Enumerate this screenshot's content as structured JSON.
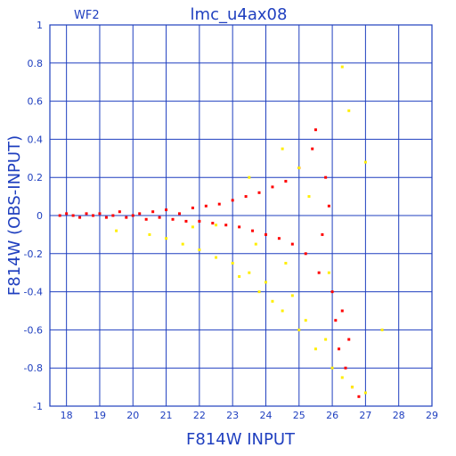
{
  "chart_data": {
    "type": "scatter",
    "title": "lmc_u4ax08",
    "subtitle": "WF2",
    "xlabel": "F814W  INPUT",
    "ylabel": "F814W  (OBS-INPUT)",
    "xlim": [
      17.5,
      29
    ],
    "ylim": [
      -1,
      1
    ],
    "x_ticks": [
      "18",
      "19",
      "20",
      "21",
      "22",
      "23",
      "24",
      "25",
      "26",
      "27",
      "28",
      "29"
    ],
    "y_ticks": [
      "1",
      "0.8",
      "0.6",
      "0.4",
      "0.2",
      "0",
      "-0.2",
      "-0.4",
      "-0.6",
      "-0.8",
      "-1"
    ],
    "grid": true,
    "colors": {
      "axes": "#1f3fbf",
      "grid": "#1f3fbf",
      "primary": "#ff0000",
      "secondary": "#ffee00"
    },
    "series": [
      {
        "color": "#ff0000",
        "points": [
          [
            17.8,
            0.0
          ],
          [
            18.0,
            0.01
          ],
          [
            18.2,
            0.0
          ],
          [
            18.4,
            -0.01
          ],
          [
            18.6,
            0.01
          ],
          [
            18.8,
            0.0
          ],
          [
            19.0,
            0.01
          ],
          [
            19.2,
            -0.01
          ],
          [
            19.4,
            0.0
          ],
          [
            19.6,
            0.02
          ],
          [
            19.8,
            -0.01
          ],
          [
            20.0,
            0.0
          ],
          [
            20.2,
            0.01
          ],
          [
            20.4,
            -0.02
          ],
          [
            20.6,
            0.02
          ],
          [
            20.8,
            -0.01
          ],
          [
            21.0,
            0.03
          ],
          [
            21.2,
            -0.02
          ],
          [
            21.4,
            0.01
          ],
          [
            21.6,
            -0.03
          ],
          [
            21.8,
            0.04
          ],
          [
            22.0,
            -0.03
          ],
          [
            22.2,
            0.05
          ],
          [
            22.4,
            -0.04
          ],
          [
            22.6,
            0.06
          ],
          [
            22.8,
            -0.05
          ],
          [
            23.0,
            0.08
          ],
          [
            23.2,
            -0.06
          ],
          [
            23.4,
            0.1
          ],
          [
            23.6,
            -0.08
          ],
          [
            23.8,
            0.12
          ],
          [
            24.0,
            -0.1
          ],
          [
            24.2,
            0.15
          ],
          [
            24.4,
            -0.12
          ],
          [
            24.6,
            0.18
          ],
          [
            24.8,
            -0.15
          ],
          [
            25.0,
            0.25
          ],
          [
            25.2,
            -0.2
          ],
          [
            25.4,
            0.35
          ],
          [
            25.5,
            0.45
          ],
          [
            25.6,
            -0.3
          ],
          [
            25.8,
            0.2
          ],
          [
            26.0,
            -0.4
          ],
          [
            26.1,
            -0.55
          ],
          [
            26.2,
            -0.7
          ],
          [
            26.3,
            -0.5
          ],
          [
            26.4,
            -0.8
          ],
          [
            26.6,
            -0.9
          ],
          [
            26.8,
            -0.95
          ],
          [
            26.5,
            -0.65
          ],
          [
            25.9,
            0.05
          ],
          [
            25.7,
            -0.1
          ]
        ]
      },
      {
        "color": "#ffee00",
        "points": [
          [
            19.5,
            -0.08
          ],
          [
            20.5,
            -0.1
          ],
          [
            21.0,
            -0.12
          ],
          [
            21.5,
            -0.15
          ],
          [
            22.0,
            -0.18
          ],
          [
            22.5,
            -0.22
          ],
          [
            23.0,
            -0.25
          ],
          [
            23.2,
            -0.32
          ],
          [
            23.5,
            -0.3
          ],
          [
            23.8,
            -0.4
          ],
          [
            24.0,
            -0.35
          ],
          [
            24.2,
            -0.45
          ],
          [
            24.5,
            -0.5
          ],
          [
            24.8,
            -0.42
          ],
          [
            25.0,
            -0.6
          ],
          [
            25.2,
            -0.55
          ],
          [
            25.5,
            -0.7
          ],
          [
            25.8,
            -0.65
          ],
          [
            26.0,
            -0.8
          ],
          [
            26.3,
            -0.85
          ],
          [
            26.6,
            -0.9
          ],
          [
            27.0,
            -0.93
          ],
          [
            27.5,
            -0.6
          ],
          [
            26.5,
            0.55
          ],
          [
            27.0,
            0.28
          ],
          [
            26.3,
            0.78
          ],
          [
            25.0,
            0.25
          ],
          [
            24.5,
            0.35
          ],
          [
            23.5,
            0.2
          ],
          [
            22.5,
            -0.05
          ],
          [
            21.8,
            -0.06
          ],
          [
            23.7,
            -0.15
          ],
          [
            24.6,
            -0.25
          ],
          [
            25.3,
            0.1
          ],
          [
            25.9,
            -0.3
          ]
        ]
      }
    ]
  }
}
